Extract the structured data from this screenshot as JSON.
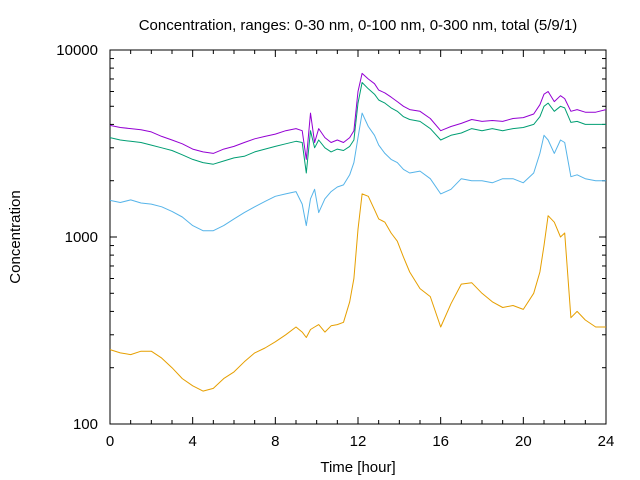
{
  "chart_data": {
    "type": "line",
    "title": "Concentration, ranges: 0-30 nm, 0-100 nm, 0-300 nm, total (5/9/1)",
    "xlabel": "Time [hour]",
    "ylabel": "Concentration",
    "xlim": [
      0,
      24
    ],
    "ylim": [
      100,
      10000
    ],
    "yscale": "log",
    "grid": false,
    "legend": "none",
    "x_ticks": [
      0,
      4,
      8,
      12,
      16,
      20,
      24
    ],
    "x_tick_labels": [
      "0",
      "4",
      "8",
      "12",
      "16",
      "20",
      "24"
    ],
    "y_ticks": [
      100,
      1000,
      10000
    ],
    "y_tick_labels": [
      "100",
      "1000",
      "10000"
    ],
    "series": [
      {
        "color": "#e69f00",
        "x": [
          0,
          0.5,
          1,
          1.5,
          2,
          2.5,
          3,
          3.5,
          4,
          4.5,
          5,
          5.5,
          6,
          6.5,
          7,
          7.5,
          8,
          8.5,
          9,
          9.3,
          9.5,
          9.7,
          9.9,
          10.1,
          10.4,
          10.7,
          11,
          11.3,
          11.6,
          11.8,
          12,
          12.2,
          12.5,
          12.8,
          13,
          13.3,
          13.6,
          13.9,
          14.2,
          14.5,
          15,
          15.5,
          16,
          16.5,
          17,
          17.5,
          18,
          18.5,
          19,
          19.5,
          20,
          20.5,
          20.8,
          21,
          21.2,
          21.5,
          21.8,
          22,
          22.3,
          22.6,
          23,
          23.5,
          24
        ],
        "values": [
          250,
          240,
          235,
          245,
          245,
          225,
          200,
          175,
          160,
          150,
          155,
          175,
          190,
          215,
          240,
          255,
          275,
          300,
          330,
          310,
          290,
          320,
          330,
          340,
          310,
          335,
          340,
          350,
          450,
          600,
          1100,
          1700,
          1650,
          1400,
          1250,
          1200,
          1050,
          950,
          780,
          650,
          530,
          480,
          330,
          440,
          560,
          570,
          500,
          450,
          420,
          430,
          410,
          500,
          650,
          900,
          1300,
          1200,
          1000,
          1050,
          370,
          400,
          360,
          330,
          330
        ]
      },
      {
        "color": "#56b4e9",
        "x": [
          0,
          0.5,
          1,
          1.5,
          2,
          2.5,
          3,
          3.5,
          4,
          4.5,
          5,
          5.5,
          6,
          6.5,
          7,
          7.5,
          8,
          8.5,
          9,
          9.3,
          9.5,
          9.7,
          9.9,
          10.1,
          10.4,
          10.7,
          11,
          11.3,
          11.6,
          11.8,
          12,
          12.2,
          12.5,
          12.8,
          13,
          13.3,
          13.6,
          13.9,
          14.2,
          14.5,
          15,
          15.5,
          16,
          16.5,
          17,
          17.5,
          18,
          18.5,
          19,
          19.5,
          20,
          20.5,
          20.8,
          21,
          21.2,
          21.5,
          21.8,
          22,
          22.3,
          22.6,
          23,
          23.5,
          24
        ],
        "values": [
          1570,
          1530,
          1580,
          1520,
          1500,
          1450,
          1370,
          1280,
          1150,
          1080,
          1080,
          1150,
          1250,
          1350,
          1450,
          1550,
          1650,
          1700,
          1750,
          1500,
          1150,
          1600,
          1800,
          1350,
          1600,
          1750,
          1850,
          1900,
          2150,
          2500,
          3400,
          4600,
          3900,
          3500,
          3100,
          2800,
          2600,
          2500,
          2300,
          2200,
          2250,
          2050,
          1700,
          1800,
          2050,
          2000,
          2000,
          1950,
          2050,
          2050,
          1950,
          2200,
          2800,
          3500,
          3300,
          2800,
          3300,
          3200,
          2100,
          2150,
          2050,
          2000,
          2000
        ]
      },
      {
        "color": "#009e73",
        "x": [
          0,
          0.5,
          1,
          1.5,
          2,
          2.5,
          3,
          3.5,
          4,
          4.5,
          5,
          5.5,
          6,
          6.5,
          7,
          7.5,
          8,
          8.5,
          9,
          9.3,
          9.5,
          9.7,
          9.9,
          10.1,
          10.4,
          10.7,
          11,
          11.3,
          11.6,
          11.8,
          12,
          12.2,
          12.5,
          12.8,
          13,
          13.3,
          13.6,
          13.9,
          14.2,
          14.5,
          15,
          15.5,
          16,
          16.5,
          17,
          17.5,
          18,
          18.5,
          19,
          19.5,
          20,
          20.5,
          20.8,
          21,
          21.2,
          21.5,
          21.8,
          22,
          22.3,
          22.6,
          23,
          23.5,
          24
        ],
        "values": [
          3400,
          3300,
          3250,
          3200,
          3100,
          3000,
          2900,
          2750,
          2600,
          2500,
          2450,
          2550,
          2650,
          2700,
          2850,
          2950,
          3050,
          3150,
          3250,
          3200,
          2200,
          3700,
          3000,
          3300,
          3000,
          2850,
          2950,
          2900,
          3050,
          3300,
          5200,
          6700,
          6200,
          5800,
          5400,
          5200,
          4900,
          4700,
          4400,
          4250,
          4150,
          3800,
          3300,
          3500,
          3600,
          3800,
          3700,
          3800,
          3700,
          3800,
          3850,
          4000,
          4400,
          5000,
          5200,
          4700,
          5000,
          4900,
          4100,
          4150,
          4000,
          4000,
          4000
        ]
      },
      {
        "color": "#9400d3",
        "x": [
          0,
          0.5,
          1,
          1.5,
          2,
          2.5,
          3,
          3.5,
          4,
          4.5,
          5,
          5.5,
          6,
          6.5,
          7,
          7.5,
          8,
          8.5,
          9,
          9.3,
          9.5,
          9.7,
          9.9,
          10.1,
          10.4,
          10.7,
          11,
          11.3,
          11.6,
          11.8,
          12,
          12.2,
          12.5,
          12.8,
          13,
          13.3,
          13.6,
          13.9,
          14.2,
          14.5,
          15,
          15.5,
          16,
          16.5,
          17,
          17.5,
          18,
          18.5,
          19,
          19.5,
          20,
          20.5,
          20.8,
          21,
          21.2,
          21.5,
          21.8,
          22,
          22.3,
          22.6,
          23,
          23.5,
          24
        ],
        "values": [
          3950,
          3850,
          3800,
          3750,
          3650,
          3450,
          3300,
          3150,
          2950,
          2850,
          2800,
          2950,
          3050,
          3200,
          3350,
          3450,
          3550,
          3700,
          3800,
          3700,
          2600,
          4600,
          3200,
          3800,
          3400,
          3200,
          3300,
          3200,
          3400,
          3700,
          6000,
          7500,
          7000,
          6600,
          6100,
          5900,
          5600,
          5300,
          5000,
          4800,
          4700,
          4300,
          3700,
          3900,
          4050,
          4250,
          4150,
          4200,
          4150,
          4300,
          4350,
          4550,
          5100,
          5800,
          6000,
          5300,
          5700,
          5500,
          4700,
          4800,
          4650,
          4650,
          4800
        ]
      }
    ]
  }
}
